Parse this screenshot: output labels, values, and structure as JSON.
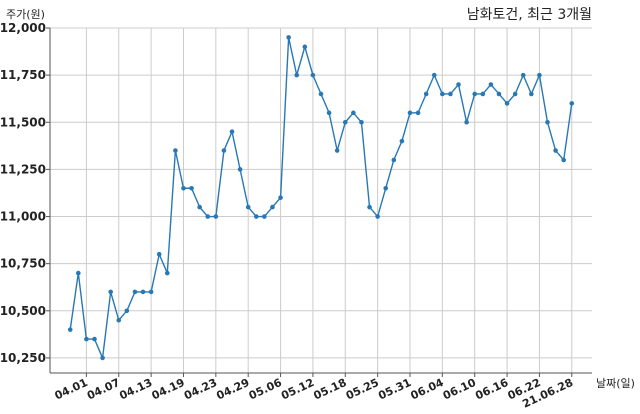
{
  "chart_data": {
    "type": "line",
    "title": "남화토건, 최근 3개월",
    "ylabel": "주가(원)",
    "xlabel": "날짜(일)",
    "xticks": [
      "04.01",
      "04.07",
      "04.13",
      "04.19",
      "04.23",
      "04.29",
      "05.06",
      "05.12",
      "05.18",
      "05.25",
      "05.31",
      "06.04",
      "06.10",
      "06.16",
      "06.22",
      "21.06.28"
    ],
    "xtick_index": [
      2,
      6,
      10,
      14,
      18,
      22,
      26,
      30,
      34,
      38,
      42,
      46,
      50,
      54,
      58,
      62
    ],
    "yticks": [
      10250,
      10500,
      10750,
      11000,
      11250,
      11500,
      11750,
      12000
    ],
    "yticklabels": [
      "10,250",
      "10,500",
      "10,750",
      "11,000",
      "11,250",
      "11,500",
      "11,750",
      "12,000"
    ],
    "ylim": [
      10170,
      12000
    ],
    "xlim": [
      -2.5,
      64.5
    ],
    "grid": true,
    "color": "#2878b5",
    "series": [
      {
        "values": [
          10400,
          10700,
          10350,
          10350,
          10250,
          10600,
          10450,
          10500,
          10600,
          10600,
          10600,
          10800,
          10700,
          11350,
          11150,
          11150,
          11050,
          11000,
          11000,
          11350,
          11450,
          11250,
          11050,
          11000,
          11000,
          11050,
          11100,
          11950,
          11750,
          11900,
          11750,
          11650,
          11550,
          11350,
          11500,
          11550,
          11500,
          11050,
          11000,
          11150,
          11300,
          11400,
          11550,
          11550,
          11650,
          11750,
          11650,
          11650,
          11700,
          11500,
          11650,
          11650,
          11700,
          11650,
          11600,
          11650,
          11750,
          11650,
          11750,
          11500,
          11350,
          11300,
          11600
        ]
      }
    ]
  }
}
